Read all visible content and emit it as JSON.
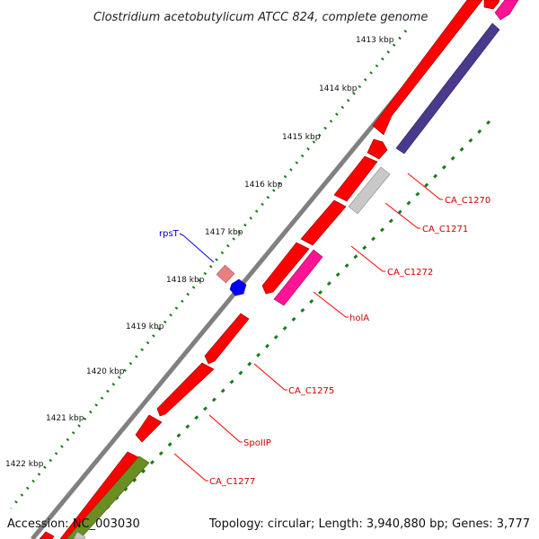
{
  "title": "Clostridium acetobutylicum ATCC 824, complete genome",
  "accession": "Accession: NC_003030",
  "summary": "Topology: circular; Length: 3,940,880 bp; Genes: 3,777",
  "ticks": [
    "1413 kbp",
    "1414 kbp",
    "1415 kbp",
    "1416 kbp",
    "1417 kbp",
    "1418 kbp",
    "1419 kbp",
    "1420 kbp",
    "1421 kbp",
    "1422 kbp"
  ],
  "labels": {
    "rpsT": "rpsT",
    "CA_C1270": "CA_C1270",
    "CA_C1271": "CA_C1271",
    "CA_C1272": "CA_C1272",
    "holA": "holA",
    "CA_C1275": "CA_C1275",
    "SpoIIP": "SpoIIP",
    "CA_C1277": "CA_C1277"
  },
  "colors": {
    "cds": "#ff0000",
    "rRNA_light": "#e88080",
    "tRNA": "#0000ff",
    "magenta": "#ff1493",
    "purple": "#4b3a8c",
    "gray_feature": "#c8c8c8",
    "olive": "#6b8e23",
    "backbone": "#808080",
    "tick": "#1a7a1a",
    "gene_label": "#cc0000",
    "rna_label": "#0000cc"
  }
}
